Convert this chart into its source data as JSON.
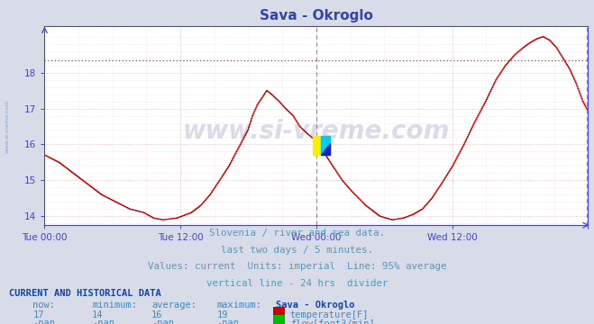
{
  "title": "Sava - Okroglo",
  "title_color": "#3344aa",
  "bg_color": "#d8dce8",
  "plot_bg_color": "#ffffff",
  "grid_color": "#ddaaaa",
  "axis_color": "#4444cc",
  "temp_line_color": "#cc0000",
  "avg_line_color": "#dd2222",
  "avg_line_value": 18.35,
  "vline_color": "#cc66cc",
  "yticks": [
    14,
    15,
    16,
    17,
    18
  ],
  "ylim": [
    13.75,
    19.3
  ],
  "xlim": [
    0,
    576
  ],
  "xtick_positions": [
    0,
    144,
    288,
    432,
    576
  ],
  "xtick_labels": [
    "Tue 00:00",
    "Tue 12:00",
    "Wed 00:00",
    "Wed 12:00",
    ""
  ],
  "vline_x": 288,
  "vline2_x": 576,
  "watermark": "www.si-vreme.com",
  "watermark_color": "#334488",
  "watermark_alpha": 0.18,
  "subtitle_lines": [
    "Slovenia / river and sea data.",
    "last two days / 5 minutes.",
    "Values: current  Units: imperial  Line: 95% average",
    "vertical line - 24 hrs  divider"
  ],
  "subtitle_color": "#5599bb",
  "table_header_color": "#1144aa",
  "table_data_color": "#4488bb",
  "temp_now": "17",
  "temp_min": "14",
  "temp_avg": "16",
  "temp_max": "19",
  "flow_now": "-nan",
  "flow_min": "-nan",
  "flow_avg": "-nan",
  "flow_max": "-nan",
  "temp_rect_color": "#cc0000",
  "flow_rect_color": "#00bb00",
  "keypoints_x": [
    0,
    15,
    30,
    45,
    60,
    75,
    90,
    105,
    115,
    125,
    140,
    155,
    165,
    175,
    185,
    195,
    205,
    215,
    220,
    225,
    230,
    235,
    240,
    248,
    255,
    263,
    270,
    278,
    285,
    288,
    295,
    305,
    315,
    325,
    340,
    355,
    368,
    380,
    390,
    400,
    410,
    420,
    432,
    444,
    455,
    467,
    478,
    488,
    498,
    507,
    515,
    522,
    528,
    535,
    542,
    549,
    556,
    563,
    570,
    576
  ],
  "keypoints_y": [
    15.7,
    15.5,
    15.2,
    14.9,
    14.6,
    14.4,
    14.2,
    14.1,
    13.95,
    13.9,
    13.95,
    14.1,
    14.3,
    14.6,
    15.0,
    15.4,
    15.9,
    16.4,
    16.8,
    17.1,
    17.3,
    17.5,
    17.4,
    17.2,
    17.0,
    16.8,
    16.5,
    16.3,
    16.15,
    16.1,
    15.8,
    15.4,
    15.0,
    14.7,
    14.3,
    14.0,
    13.9,
    13.95,
    14.05,
    14.2,
    14.5,
    14.9,
    15.4,
    16.0,
    16.6,
    17.2,
    17.8,
    18.2,
    18.5,
    18.7,
    18.85,
    18.95,
    19.0,
    18.9,
    18.7,
    18.4,
    18.1,
    17.7,
    17.2,
    16.9
  ]
}
